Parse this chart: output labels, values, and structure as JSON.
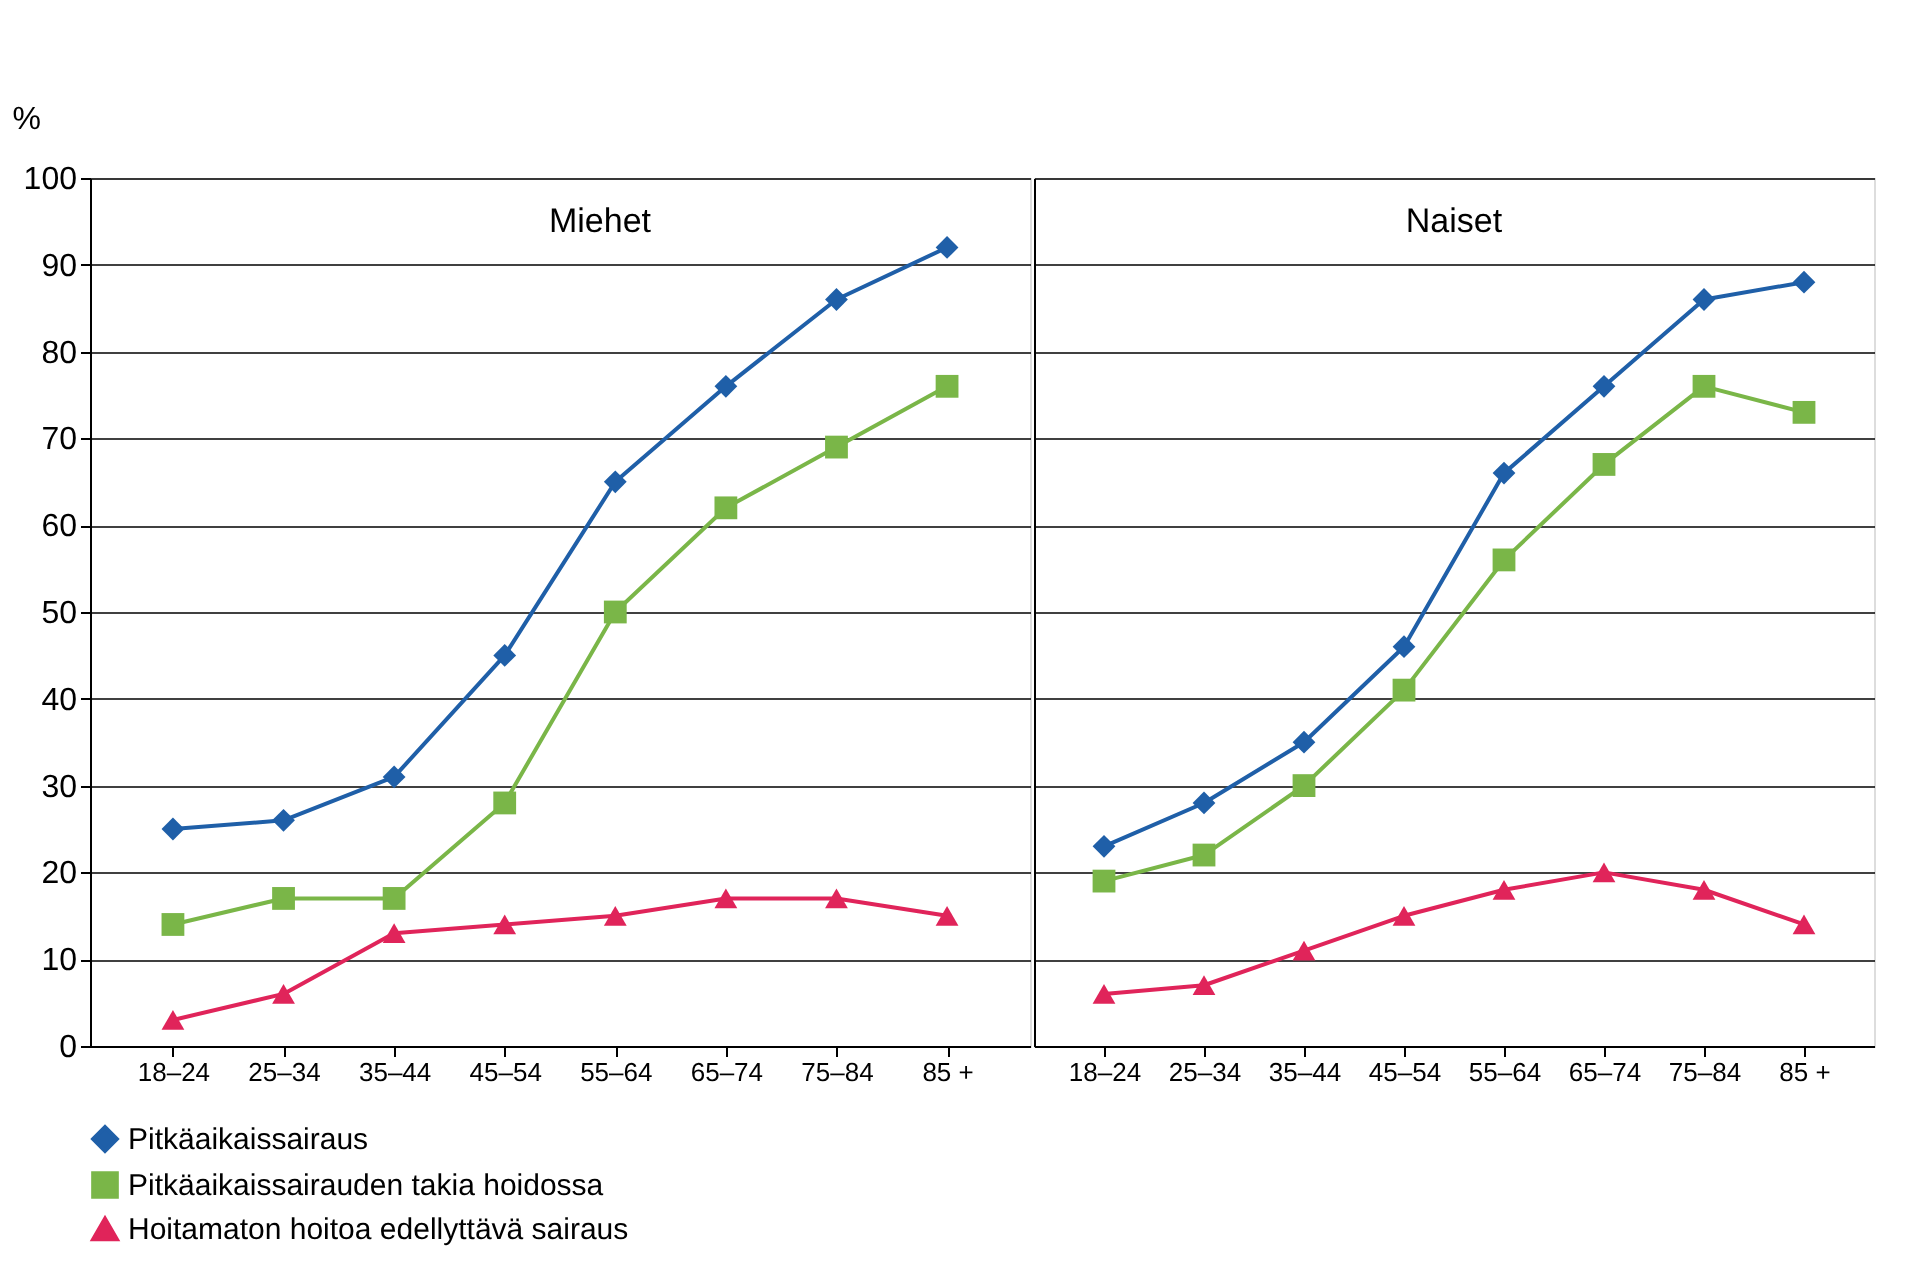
{
  "chart_data": [
    {
      "type": "line",
      "title": "Miehet",
      "ylabel": "%",
      "categories": [
        "18–24",
        "25–34",
        "35–44",
        "45–54",
        "55–64",
        "65–74",
        "75–84",
        "85 +"
      ],
      "ylim": [
        0,
        100
      ],
      "yticks": [
        0,
        10,
        20,
        30,
        40,
        50,
        60,
        70,
        80,
        90,
        100
      ],
      "grid": "y",
      "legend": "bottom",
      "series": [
        {
          "name": "Pitkäaikaissairaus",
          "color": "#1f5fa8",
          "marker": "diamond",
          "values": [
            25,
            26,
            31,
            45,
            65,
            76,
            86,
            92
          ]
        },
        {
          "name": "Pitkäaikaissairauden takia hoidossa",
          "color": "#7ab648",
          "marker": "square",
          "values": [
            14,
            17,
            17,
            28,
            50,
            62,
            69,
            76
          ]
        },
        {
          "name": "Hoitamaton hoitoa edellyttävä sairaus",
          "color": "#e0245a",
          "marker": "triangle",
          "values": [
            3,
            6,
            13,
            14,
            15,
            17,
            17,
            15
          ]
        }
      ]
    },
    {
      "type": "line",
      "title": "Naiset",
      "categories": [
        "18–24",
        "25–34",
        "35–44",
        "45–54",
        "55–64",
        "65–74",
        "75–84",
        "85 +"
      ],
      "ylim": [
        0,
        100
      ],
      "yticks": [
        0,
        10,
        20,
        30,
        40,
        50,
        60,
        70,
        80,
        90,
        100
      ],
      "grid": "y",
      "legend": "bottom",
      "tick_labels": "x",
      "series": [
        {
          "name": "Pitkäaikaissairaus",
          "color": "#1f5fa8",
          "marker": "diamond",
          "values": [
            23,
            28,
            35,
            46,
            66,
            76,
            86,
            88
          ]
        },
        {
          "name": "Pitkäaikaissairauden takia hoidossa",
          "color": "#7ab648",
          "marker": "square",
          "values": [
            19,
            22,
            30,
            41,
            56,
            67,
            76,
            73
          ]
        },
        {
          "name": "Hoitamaton hoitoa edellyttävä sairaus",
          "color": "#e0245a",
          "marker": "triangle",
          "values": [
            6,
            7,
            11,
            15,
            18,
            20,
            18,
            14
          ]
        }
      ]
    }
  ]
}
